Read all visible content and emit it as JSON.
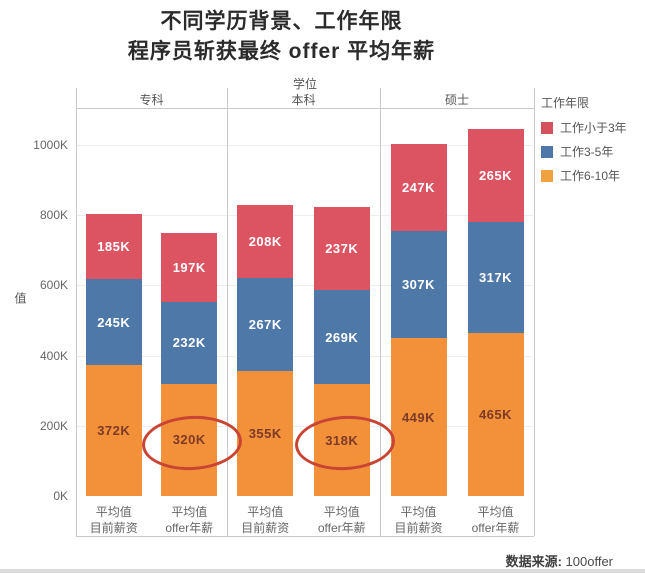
{
  "title": {
    "line1": "不同学历背景、工作年限",
    "line2": "程序员斩获最终 offer 平均年薪"
  },
  "source": {
    "label": "数据来源:",
    "value": "100offer"
  },
  "chart_data": {
    "type": "bar",
    "stacked": true,
    "title": "不同学历背景、工作年限 程序员斩获最终 offer 平均年薪",
    "column_field": "学位",
    "categories_top": [
      "专科",
      "本科",
      "硕士"
    ],
    "x_sublabels": [
      [
        "平均值",
        "目前薪资"
      ],
      [
        "平均值",
        "offer年薪"
      ]
    ],
    "ylabel": "值",
    "unit": "K",
    "ylim": [
      0,
      1100
    ],
    "grid": true,
    "ytick_values": [
      0,
      200,
      400,
      600,
      800,
      1000
    ],
    "ytick_labels": [
      "0K",
      "200K",
      "400K",
      "600K",
      "800K",
      "1000K"
    ],
    "series": [
      {
        "name": "工作6-10年",
        "color": "#f2913a",
        "label_color": "#7d3a27",
        "values": [
          372,
          320,
          355,
          318,
          449,
          465
        ]
      },
      {
        "name": "工作3-5年",
        "color": "#4e78a8",
        "label_color": "#ffffff",
        "values": [
          245,
          232,
          267,
          269,
          307,
          317
        ]
      },
      {
        "name": "工作小于3年",
        "color": "#dc5462",
        "label_color": "#ffffff",
        "values": [
          185,
          197,
          208,
          237,
          247,
          265
        ]
      }
    ],
    "legend": {
      "title": "工作年限",
      "position": "top-right",
      "entries": [
        {
          "label": "工作小于3年",
          "color": "#d4525e"
        },
        {
          "label": "工作3-5年",
          "color": "#4e78a8"
        },
        {
          "label": "工作6-10年",
          "color": "#efa23f"
        }
      ]
    },
    "annotations": [
      {
        "type": "ellipse",
        "target_bar": 1,
        "target_series": "工作6-10年",
        "circled_value": "320K",
        "color": "#c94433"
      },
      {
        "type": "ellipse",
        "target_bar": 3,
        "target_series": "工作6-10年",
        "circled_value": "318K",
        "color": "#c94433"
      }
    ]
  }
}
